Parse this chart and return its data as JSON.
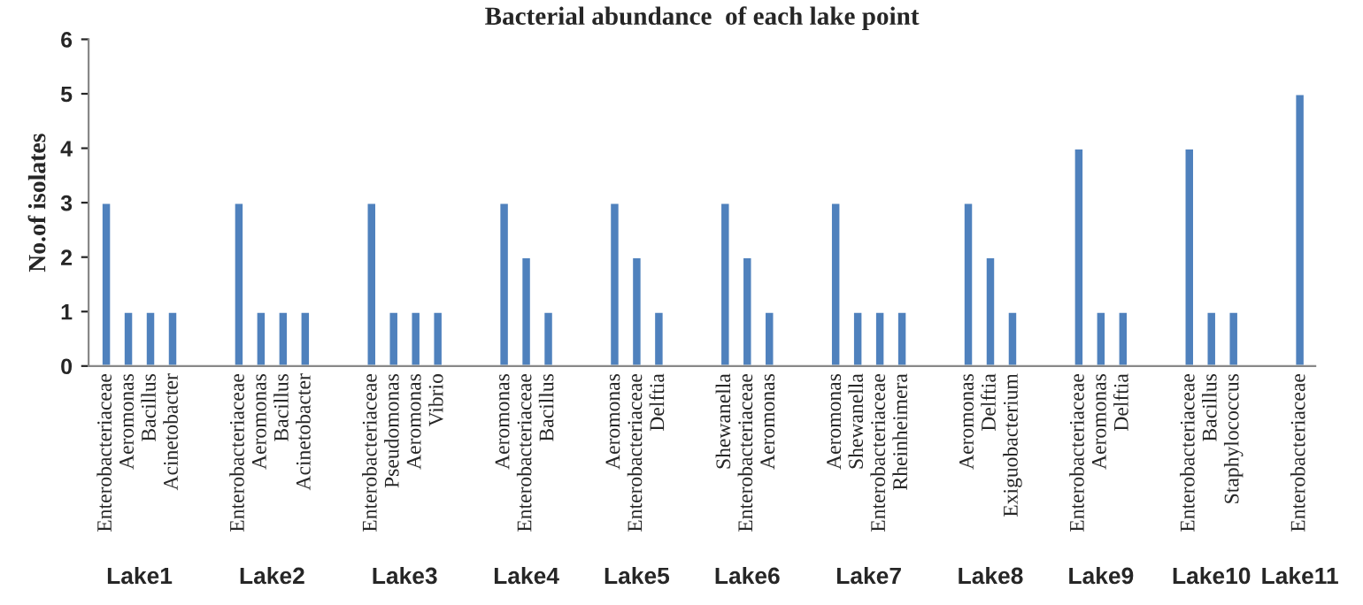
{
  "chart_data": {
    "type": "bar",
    "title": "Bacterial abundance  of each lake point",
    "ylabel": "No.of isolates",
    "categories": [
      "Enterobacteriaceae",
      "Aeromonas",
      "Bacillus",
      "Acinetobacter",
      null,
      null,
      "Enterobacteriaceae",
      "Aeromonas",
      "Bacillus",
      "Acinetobacter",
      null,
      null,
      "Enterobacteriaceae",
      "Pseudomonas",
      "Aeromonas",
      "Vibrio",
      null,
      null,
      "Aeromonas",
      "Enterobacteriaceae",
      "Bacillus",
      null,
      null,
      "Aeromonas",
      "Enterobacteriaceae",
      "Delftia",
      null,
      null,
      "Shewanella",
      "Enterobacteriaceae",
      "Aeromonas",
      null,
      null,
      "Aeromonas",
      "Shewanella",
      "Enterobacteriaceae",
      "Rheinheimera",
      null,
      null,
      "Aeromonas",
      "Delftia",
      "Exiguobacterium",
      null,
      null,
      "Enterobacteriaceae",
      "Aeromonas",
      "Delftia",
      null,
      null,
      "Enterobacteriaceae",
      "Bacillus",
      "Staphylococcus",
      null,
      null,
      "Enterobacteriaceae"
    ],
    "values": [
      3,
      1,
      1,
      1,
      null,
      null,
      3,
      1,
      1,
      1,
      null,
      null,
      3,
      1,
      1,
      1,
      null,
      null,
      3,
      2,
      1,
      null,
      null,
      3,
      2,
      1,
      null,
      null,
      3,
      2,
      1,
      null,
      null,
      3,
      1,
      1,
      1,
      null,
      null,
      3,
      2,
      1,
      null,
      null,
      4,
      1,
      1,
      null,
      null,
      4,
      1,
      1,
      null,
      null,
      5
    ],
    "color": "#4f81bd",
    "ylim": [
      0,
      6
    ],
    "yticks": [
      0,
      1,
      2,
      3,
      4,
      5,
      6
    ],
    "grid": false,
    "legend": false,
    "annotations": [
      "Lake1",
      "Lake2",
      "Lake3",
      "Lake4",
      "Lake5",
      "Lake6",
      "Lake7",
      "Lake8",
      "Lake9",
      "Lake10",
      "Lake11"
    ]
  }
}
